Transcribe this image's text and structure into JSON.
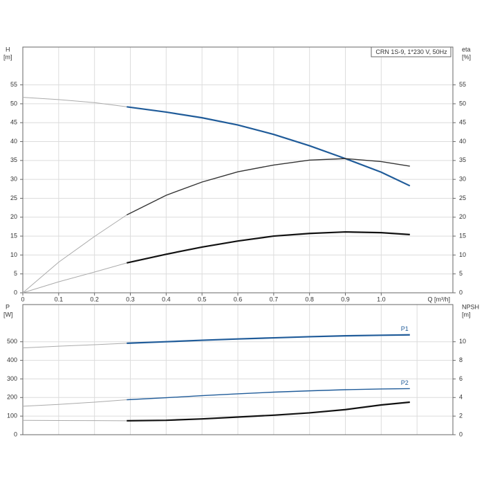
{
  "chart_data": [
    {
      "type": "line",
      "legend_title": "CRN 1S-9, 1*230 V, 50Hz",
      "ylabel": "H",
      "yunit": "[m]",
      "y2label": "eta",
      "y2unit": "[%]",
      "xlabel": "Q [m³/h]",
      "x": [
        0,
        0.1,
        0.2,
        0.29,
        0.4,
        0.5,
        0.6,
        0.7,
        0.8,
        0.9,
        1.0,
        1.08
      ],
      "xlim": [
        0,
        1.2
      ],
      "xticks": [
        0,
        0.1,
        0.2,
        0.3,
        0.4,
        0.5,
        0.6,
        0.7,
        0.8,
        0.9,
        {
          "value": 1,
          "label": "1.0"
        }
      ],
      "ylim": [
        0,
        65
      ],
      "yticks": [
        0,
        5,
        10,
        15,
        20,
        25,
        30,
        35,
        40,
        45,
        50,
        55
      ],
      "y2lim": [
        0,
        65
      ],
      "y2ticks": [
        0,
        5,
        10,
        15,
        20,
        25,
        30,
        35,
        40,
        45,
        50,
        55
      ],
      "grid": true,
      "series": [
        {
          "color": "#aaaaaa",
          "width": 1,
          "values": [
            51.7,
            51.1,
            50.3,
            49.2,
            null,
            null,
            null,
            null,
            null,
            null,
            null,
            null
          ]
        },
        {
          "color": "#1f5b99",
          "width": 2.2,
          "values": [
            null,
            null,
            null,
            49.2,
            47.8,
            46.3,
            44.4,
            41.9,
            38.9,
            35.5,
            31.9,
            28.3
          ]
        },
        {
          "color": "#aaaaaa",
          "width": 1,
          "axis": "y2",
          "values": [
            0,
            8.1,
            14.9,
            20.6,
            null,
            null,
            null,
            null,
            null,
            null,
            null,
            null
          ]
        },
        {
          "color": "#333333",
          "width": 1.4,
          "axis": "y2",
          "values": [
            null,
            null,
            null,
            20.6,
            25.8,
            29.3,
            32,
            33.8,
            35.1,
            35.5,
            34.7,
            33.5
          ]
        },
        {
          "color": "#aaaaaa",
          "width": 1,
          "axis": "y2",
          "values": [
            0,
            2.9,
            5.5,
            7.9,
            null,
            null,
            null,
            null,
            null,
            null,
            null,
            null
          ]
        },
        {
          "color": "#111111",
          "width": 2.2,
          "axis": "y2",
          "values": [
            null,
            null,
            null,
            7.9,
            10.2,
            12.1,
            13.7,
            15,
            15.7,
            16.1,
            15.9,
            15.4
          ]
        }
      ]
    },
    {
      "type": "line",
      "ylabel": "P",
      "yunit": "[W]",
      "y2label": "NPSH",
      "y2unit": "[m]",
      "x": [
        0,
        0.1,
        0.2,
        0.29,
        0.4,
        0.5,
        0.6,
        0.7,
        0.8,
        0.9,
        1.0,
        1.08
      ],
      "xlim": [
        0,
        1.2
      ],
      "xgrid": [
        0,
        0.1,
        0.2,
        0.3,
        0.4,
        0.5,
        0.6,
        0.7,
        0.8,
        0.9,
        1,
        1.1
      ],
      "ylim": [
        0,
        700
      ],
      "yticks": [
        0,
        100,
        200,
        300,
        400,
        500
      ],
      "y2lim": [
        0,
        14
      ],
      "y2ticks": [
        0,
        2,
        4,
        6,
        8,
        10
      ],
      "grid": true,
      "series": [
        {
          "color": "#aaaaaa",
          "width": 1,
          "values": [
            467,
            476,
            484,
            492,
            null,
            null,
            null,
            null,
            null,
            null,
            null,
            null
          ]
        },
        {
          "name": "P1",
          "color": "#1f5b99",
          "width": 2.2,
          "values": [
            null,
            null,
            null,
            492,
            500,
            508,
            515,
            521,
            527,
            532,
            535,
            537
          ]
        },
        {
          "color": "#aaaaaa",
          "width": 1,
          "values": [
            153,
            163,
            175,
            188,
            null,
            null,
            null,
            null,
            null,
            null,
            null,
            null
          ]
        },
        {
          "name": "P2",
          "color": "#1f5b99",
          "width": 1.4,
          "values": [
            null,
            null,
            null,
            188,
            199,
            210,
            220,
            229,
            236,
            242,
            246,
            248
          ]
        },
        {
          "color": "#aaaaaa",
          "width": 1,
          "axis": "y2",
          "values": [
            1.55,
            1.53,
            1.52,
            1.5,
            null,
            null,
            null,
            null,
            null,
            null,
            null,
            null
          ]
        },
        {
          "color": "#111111",
          "width": 2.2,
          "axis": "y2",
          "values": [
            null,
            null,
            null,
            1.5,
            1.55,
            1.7,
            1.9,
            2.1,
            2.35,
            2.7,
            3.2,
            3.5
          ]
        }
      ]
    }
  ]
}
